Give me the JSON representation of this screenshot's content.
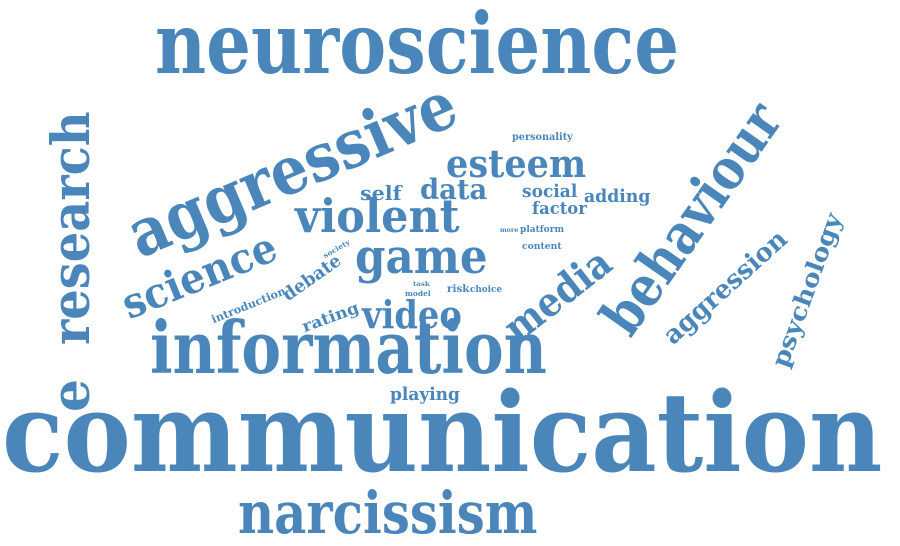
{
  "style": {
    "word_color": "#4a86ba",
    "background": "#ffffff"
  },
  "words": {
    "communication": "communication",
    "information": "information",
    "neuroscience": "neuroscience",
    "narcissism": "narcissism",
    "research": "research",
    "e": "e",
    "aggressive": "aggressive",
    "behaviour": "behaviour",
    "violent": "violent",
    "game": "game",
    "science": "science",
    "media": "media",
    "video": "video",
    "esteem": "esteem",
    "aggression": "aggression",
    "psychology": "psychology",
    "data": "data",
    "self": "self",
    "social": "social",
    "adding": "adding",
    "factor": "factor",
    "debate": "debate",
    "rating": "rating",
    "playing": "playing",
    "introduction": "introduction",
    "personality": "personality",
    "platform": "platform",
    "content": "content",
    "risk": "risk",
    "choice": "choice",
    "model": "model",
    "society": "society",
    "more": "more",
    "task": "task"
  }
}
